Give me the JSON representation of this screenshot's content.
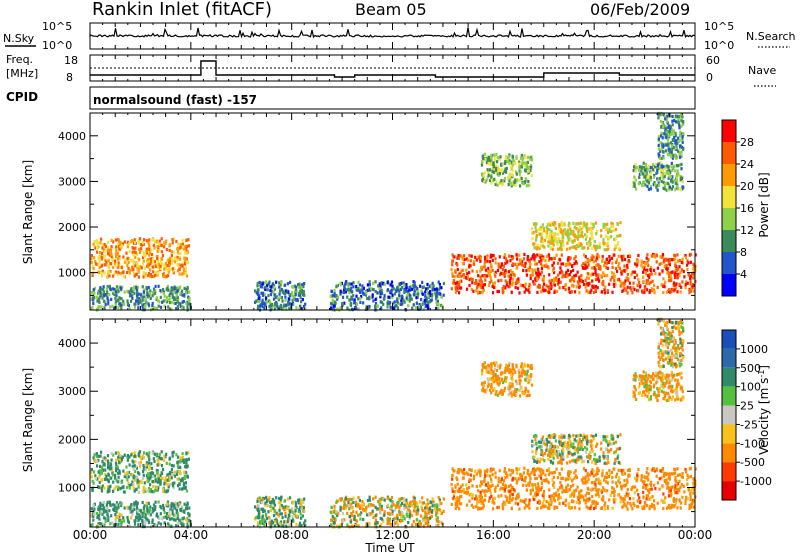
{
  "header": {
    "station": "Rankin Inlet (fitACF)",
    "beam": "Beam 05",
    "date": "06/Feb/2009"
  },
  "noise_panel": {
    "left_label": "N.Sky",
    "right_label": "N.Search",
    "ticks": [
      "10^5",
      "10^0"
    ]
  },
  "freq_panel": {
    "left_label": "Freq.",
    "left_unit": "[MHz]",
    "left_ticks": [
      "18",
      "8"
    ],
    "right_label": "Nave",
    "right_ticks": [
      "60",
      "0"
    ]
  },
  "cpid": {
    "label": "CPID",
    "value": "normalsound (fast) -157"
  },
  "x_axis": {
    "label": "Time UT",
    "ticks": [
      "00:00",
      "04:00",
      "08:00",
      "12:00",
      "16:00",
      "20:00",
      "00:00"
    ],
    "range_hours": [
      0,
      24
    ]
  },
  "y_axis": {
    "label": "Slant Range [km]",
    "ticks": [
      1000,
      2000,
      3000,
      4000
    ],
    "range_km": [
      180,
      4500
    ]
  },
  "power_scale": {
    "label": "Power [dB]",
    "ticks": [
      "4",
      "8",
      "12",
      "16",
      "20",
      "24",
      "28"
    ],
    "colors": [
      "#0000ff",
      "#2255cc",
      "#3a8a5a",
      "#8ed04a",
      "#f2e23c",
      "#ff9a00",
      "#ff5a00",
      "#ff0000"
    ]
  },
  "velocity_scale": {
    "label": "Velocity [m s",
    "label_sup": "-1",
    "label_end": "]",
    "ticks": [
      "1000",
      "500",
      "100",
      "25",
      "-25",
      "-100",
      "-500",
      "-1000"
    ],
    "colors": [
      "#1b4fb8",
      "#2b6aa8",
      "#2f8a6a",
      "#55c040",
      "#c8c8c0",
      "#f7c21b",
      "#ff8a00",
      "#ff3a00",
      "#e60000"
    ]
  },
  "chart_data": {
    "type": "heatmap",
    "title": "Rankin Inlet (fitACF)",
    "subtitle": "Beam 05",
    "date": "06/Feb/2009",
    "xlabel": "Time UT",
    "ylabel": "Slant Range [km]",
    "xlim_hours": [
      0,
      24
    ],
    "ylim_km": [
      180,
      4500
    ],
    "echo_regions": [
      {
        "t_start": 0.0,
        "t_end": 3.9,
        "r_min": 900,
        "r_max": 1750,
        "power_db": 22,
        "velocity": 150
      },
      {
        "t_start": 0.0,
        "t_end": 4.0,
        "r_min": 180,
        "r_max": 700,
        "power_db": 10,
        "velocity": 200
      },
      {
        "t_start": 6.5,
        "t_end": 8.5,
        "r_min": 180,
        "r_max": 800,
        "power_db": 9,
        "velocity": 100
      },
      {
        "t_start": 9.5,
        "t_end": 14.0,
        "r_min": 180,
        "r_max": 800,
        "power_db": 8,
        "velocity": -50
      },
      {
        "t_start": 14.3,
        "t_end": 24.0,
        "r_min": 550,
        "r_max": 1400,
        "power_db": 27,
        "velocity": -300
      },
      {
        "t_start": 15.5,
        "t_end": 17.5,
        "r_min": 2900,
        "r_max": 3600,
        "power_db": 14,
        "velocity": -200
      },
      {
        "t_start": 17.5,
        "t_end": 21.0,
        "r_min": 1500,
        "r_max": 2100,
        "power_db": 18,
        "velocity": 0
      },
      {
        "t_start": 21.5,
        "t_end": 23.5,
        "r_min": 2800,
        "r_max": 3400,
        "power_db": 12,
        "velocity": -150
      },
      {
        "t_start": 22.5,
        "t_end": 23.5,
        "r_min": 3500,
        "r_max": 4500,
        "power_db": 10,
        "velocity": -100
      }
    ],
    "frequency_segments_mhz": [
      {
        "t_start": 0.0,
        "t_end": 4.4,
        "value": 11
      },
      {
        "t_start": 4.4,
        "t_end": 5.0,
        "value": 18
      },
      {
        "t_start": 5.0,
        "t_end": 9.7,
        "value": 11
      },
      {
        "t_start": 9.7,
        "t_end": 10.5,
        "value": 10
      },
      {
        "t_start": 10.5,
        "t_end": 13.7,
        "value": 11
      },
      {
        "t_start": 13.7,
        "t_end": 16.5,
        "value": 10
      },
      {
        "t_start": 16.5,
        "t_end": 18.0,
        "value": 10
      },
      {
        "t_start": 18.0,
        "t_end": 21.0,
        "value": 12
      },
      {
        "t_start": 21.0,
        "t_end": 24.0,
        "value": 11
      }
    ]
  }
}
